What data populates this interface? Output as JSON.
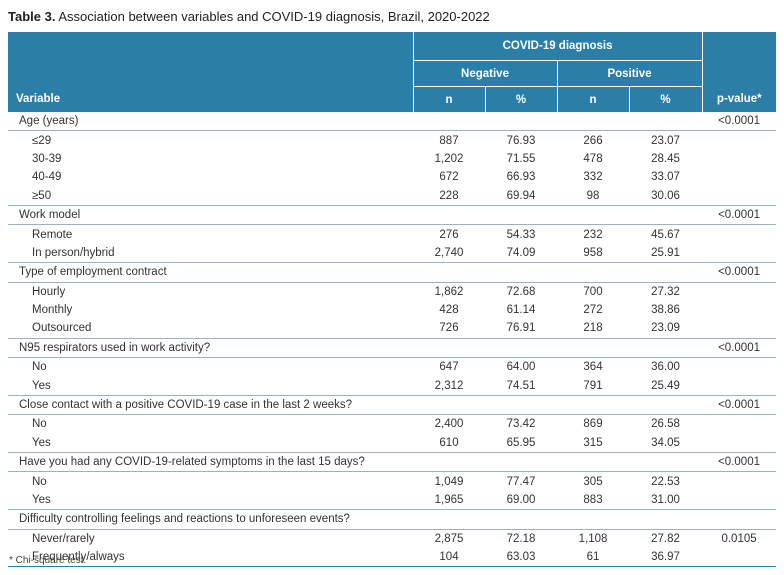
{
  "caption": {
    "label": "Table 3.",
    "text": " Association between variables and COVID-19 diagnosis, Brazil, 2020-2022"
  },
  "header": {
    "group": "COVID-19 diagnosis",
    "negative": "Negative",
    "positive": "Positive",
    "variable": "Variable",
    "n": "n",
    "pct": "%",
    "pvalue": "p-value*"
  },
  "groups": [
    {
      "title": "Age (years)",
      "p": "<0.0001",
      "rows": [
        {
          "label": "≤29",
          "n1": "887",
          "p1": "76.93",
          "n2": "266",
          "p2": "23.07"
        },
        {
          "label": "30-39",
          "n1": "1,202",
          "p1": "71.55",
          "n2": "478",
          "p2": "28.45"
        },
        {
          "label": "40-49",
          "n1": "672",
          "p1": "66.93",
          "n2": "332",
          "p2": "33.07"
        },
        {
          "label": "≥50",
          "n1": "228",
          "p1": "69.94",
          "n2": "98",
          "p2": "30.06"
        }
      ]
    },
    {
      "title": "Work model",
      "p": "<0.0001",
      "rows": [
        {
          "label": "Remote",
          "n1": "276",
          "p1": "54.33",
          "n2": "232",
          "p2": "45.67"
        },
        {
          "label": "In person/hybrid",
          "n1": "2,740",
          "p1": "74.09",
          "n2": "958",
          "p2": "25.91"
        }
      ]
    },
    {
      "title": "Type of employment contract",
      "p": "<0.0001",
      "rows": [
        {
          "label": "Hourly",
          "n1": "1,862",
          "p1": "72.68",
          "n2": "700",
          "p2": "27.32"
        },
        {
          "label": "Monthly",
          "n1": "428",
          "p1": "61.14",
          "n2": "272",
          "p2": "38.86"
        },
        {
          "label": "Outsourced",
          "n1": "726",
          "p1": "76.91",
          "n2": "218",
          "p2": "23.09"
        }
      ]
    },
    {
      "title": "N95 respirators used in work activity?",
      "p": "<0.0001",
      "rows": [
        {
          "label": "No",
          "n1": "647",
          "p1": "64.00",
          "n2": "364",
          "p2": "36.00"
        },
        {
          "label": "Yes",
          "n1": "2,312",
          "p1": "74.51",
          "n2": "791",
          "p2": "25.49"
        }
      ]
    },
    {
      "title": "Close contact with a positive COVID-19 case in the last 2 weeks?",
      "p": "<0.0001",
      "rows": [
        {
          "label": "No",
          "n1": "2,400",
          "p1": "73.42",
          "n2": "869",
          "p2": "26.58"
        },
        {
          "label": "Yes",
          "n1": "610",
          "p1": "65.95",
          "n2": "315",
          "p2": "34.05"
        }
      ]
    },
    {
      "title": "Have you had any COVID-19-related symptoms in the last 15 days?",
      "p": "<0.0001",
      "rows": [
        {
          "label": "No",
          "n1": "1,049",
          "p1": "77.47",
          "n2": "305",
          "p2": "22.53"
        },
        {
          "label": "Yes",
          "n1": "1,965",
          "p1": "69.00",
          "n2": "883",
          "p2": "31.00"
        }
      ]
    },
    {
      "title": "Difficulty controlling feelings and reactions to unforeseen events?",
      "p": "",
      "rows": [
        {
          "label": "Never/rarely",
          "n1": "2,875",
          "p1": "72.18",
          "n2": "1,108",
          "p2": "27.82",
          "pv": "0.0105"
        },
        {
          "label": "Frequently/always",
          "n1": "104",
          "p1": "63.03",
          "n2": "61",
          "p2": "36.97"
        }
      ]
    }
  ],
  "footnote": "* Chi-square test."
}
